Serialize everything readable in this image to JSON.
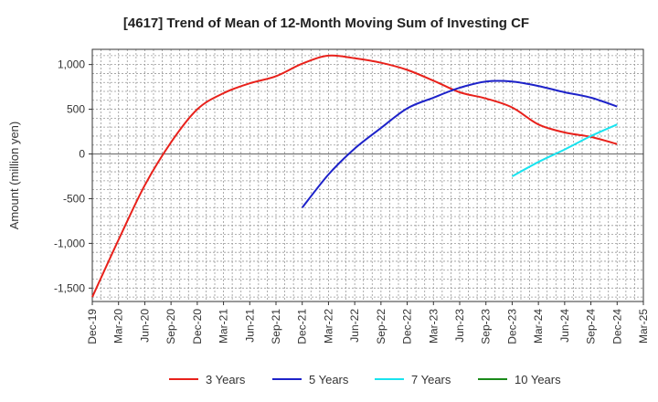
{
  "chart_data": {
    "type": "line",
    "title": "[4617]  Trend of Mean of 12-Month Moving Sum of Investing CF",
    "ylabel": "Amount (million yen)",
    "xlabel": "",
    "ylim": [
      -1650,
      1170
    ],
    "x_ticks": [
      "Dec-19",
      "Mar-20",
      "Jun-20",
      "Sep-20",
      "Dec-20",
      "Mar-21",
      "Jun-21",
      "Sep-21",
      "Dec-21",
      "Mar-22",
      "Jun-22",
      "Sep-22",
      "Dec-22",
      "Mar-23",
      "Jun-23",
      "Sep-23",
      "Dec-23",
      "Mar-24",
      "Jun-24",
      "Sep-24",
      "Dec-24",
      "Mar-25"
    ],
    "y_ticks": [
      1000,
      500,
      0,
      -500,
      -1000,
      -1500
    ],
    "y_tick_labels": [
      "1,000",
      "500",
      "0",
      "-500",
      "-1,000",
      "-1,500"
    ],
    "grid": true,
    "legend_position": "bottom",
    "series": [
      {
        "name": "3 Years",
        "color": "#e8211b",
        "x": [
          "Dec-19",
          "Mar-20",
          "Jun-20",
          "Sep-20",
          "Dec-20",
          "Mar-21",
          "Jun-21",
          "Sep-21",
          "Dec-21",
          "Mar-22",
          "Jun-22",
          "Sep-22",
          "Dec-22",
          "Mar-23",
          "Jun-23",
          "Sep-23",
          "Dec-23",
          "Mar-24",
          "Jun-24",
          "Sep-24",
          "Dec-24"
        ],
        "values": [
          -1600,
          -960,
          -350,
          130,
          500,
          680,
          790,
          870,
          1010,
          1100,
          1070,
          1020,
          940,
          820,
          690,
          620,
          520,
          330,
          240,
          190,
          110
        ]
      },
      {
        "name": "5 Years",
        "color": "#1d22c9",
        "x": [
          "Dec-21",
          "Mar-22",
          "Jun-22",
          "Sep-22",
          "Dec-22",
          "Mar-23",
          "Jun-23",
          "Sep-23",
          "Dec-23",
          "Mar-24",
          "Jun-24",
          "Sep-24",
          "Dec-24"
        ],
        "values": [
          -600,
          -230,
          60,
          290,
          510,
          630,
          740,
          810,
          810,
          760,
          690,
          630,
          530
        ]
      },
      {
        "name": "7 Years",
        "color": "#19e3ef",
        "x": [
          "Dec-23",
          "Mar-24",
          "Jun-24",
          "Sep-24",
          "Dec-24"
        ],
        "values": [
          -250,
          -90,
          50,
          200,
          330
        ]
      },
      {
        "name": "10 Years",
        "color": "#1a8a1a",
        "x": [],
        "values": []
      }
    ]
  }
}
